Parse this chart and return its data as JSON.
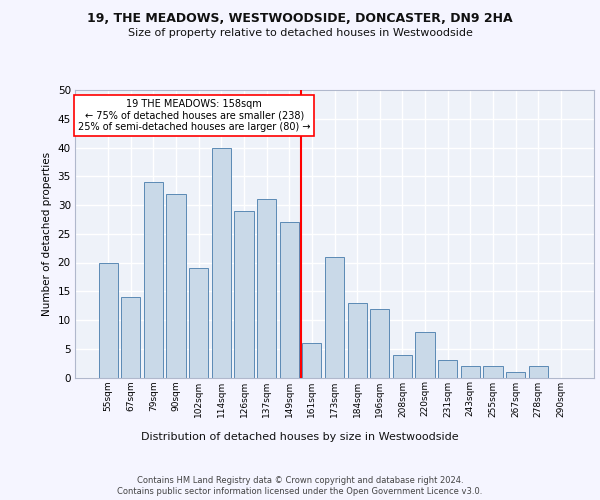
{
  "title1": "19, THE MEADOWS, WESTWOODSIDE, DONCASTER, DN9 2HA",
  "title2": "Size of property relative to detached houses in Westwoodside",
  "xlabel": "Distribution of detached houses by size in Westwoodside",
  "ylabel": "Number of detached properties",
  "footer1": "Contains HM Land Registry data © Crown copyright and database right 2024.",
  "footer2": "Contains public sector information licensed under the Open Government Licence v3.0.",
  "annotation_line1": "19 THE MEADOWS: 158sqm",
  "annotation_line2": "← 75% of detached houses are smaller (238)",
  "annotation_line3": "25% of semi-detached houses are larger (80) →",
  "bar_labels": [
    "55sqm",
    "67sqm",
    "79sqm",
    "90sqm",
    "102sqm",
    "114sqm",
    "126sqm",
    "137sqm",
    "149sqm",
    "161sqm",
    "173sqm",
    "184sqm",
    "196sqm",
    "208sqm",
    "220sqm",
    "231sqm",
    "243sqm",
    "255sqm",
    "267sqm",
    "278sqm",
    "290sqm"
  ],
  "bar_values": [
    20,
    14,
    34,
    32,
    19,
    40,
    29,
    31,
    27,
    6,
    21,
    13,
    12,
    4,
    8,
    3,
    2,
    2,
    1,
    2,
    0
  ],
  "bar_color": "#c9d9e8",
  "bar_edge_color": "#5b8ab5",
  "reference_line_color": "red",
  "background_color": "#eef2f9",
  "grid_color": "#ffffff",
  "ylim": [
    0,
    50
  ],
  "yticks": [
    0,
    5,
    10,
    15,
    20,
    25,
    30,
    35,
    40,
    45,
    50
  ],
  "fig_bg_color": "#f5f5ff",
  "title1_fontsize": 9.0,
  "title2_fontsize": 8.0,
  "ylabel_fontsize": 7.5,
  "xlabel_fontsize": 8.0,
  "tick_fontsize": 6.5,
  "footer_fontsize": 6.0,
  "annotation_fontsize": 7.0
}
